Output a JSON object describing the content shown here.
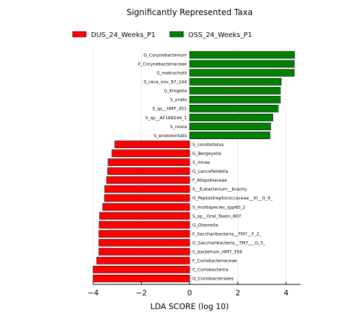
{
  "chart_data": {
    "type": "bar",
    "orientation": "horizontal",
    "title": "Significantly Represented Taxa",
    "xlabel": "LDA SCORE (log 10)",
    "ylabel": "",
    "xlim": [
      -4.0,
      4.6
    ],
    "xticks": [
      -4,
      -2,
      0,
      2,
      4
    ],
    "xtick_labels": [
      "−4",
      "−2",
      "0",
      "2",
      "4"
    ],
    "grid": "vertical dotted",
    "legend": {
      "placement": "top",
      "entries": [
        {
          "name": "DUS_24_Weeks_P1",
          "color": "#ff0000"
        },
        {
          "name": "OSS_24_Weeks_P1",
          "color": "#008000"
        }
      ]
    },
    "series": [
      {
        "name": "OSS_24_Weeks_P1",
        "color": "#008000",
        "categories": [
          "G_Corynebacterium",
          "F_Corynebacteriaceae",
          "S_matruchotii",
          "S_rava_nov_97_244",
          "G_Kingella",
          "S_oralis",
          "S_sp__HMT_451",
          "S_sp__AF189244_1",
          "S_noxia",
          "S_endodontalis"
        ],
        "values": [
          4.35,
          4.34,
          4.34,
          3.8,
          3.76,
          3.76,
          3.67,
          3.45,
          3.36,
          3.33
        ]
      },
      {
        "name": "DUS_24_Weeks_P1",
        "color": "#ff0000",
        "categories": [
          "S_constellatus",
          "G_Bergeyella",
          "S_rimae",
          "G_Lancefieldella",
          "F_Atopobiaceae",
          "S__Eubacterium__brachy",
          "G_Peptostreptococcaceae__XI__G_9_",
          "S_multispecies_spp60_2",
          "S_sp__Oral_Taxon_807",
          "G_Olsenella",
          "F_Saccharibacteria__TM7__F_2_",
          "G_Saccharibacteria__TM7___G_5_",
          "S_bacterium_HMT_356",
          "F_Coriobacteriaceae",
          "C_Coriobacteriia",
          "O_Coriobacteriales"
        ],
        "values": [
          -3.1,
          -3.22,
          -3.38,
          -3.4,
          -3.44,
          -3.52,
          -3.53,
          -3.6,
          -3.73,
          -3.75,
          -3.76,
          -3.76,
          -3.76,
          -3.85,
          -4.0,
          -4.0
        ]
      }
    ]
  }
}
